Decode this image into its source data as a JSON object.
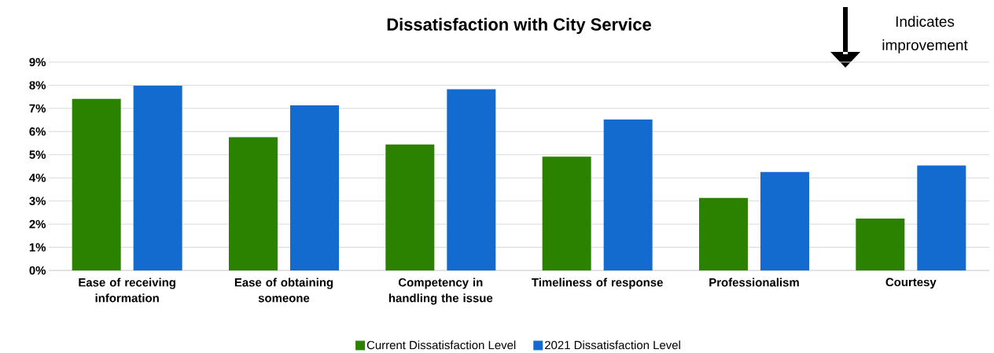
{
  "chart_data": {
    "type": "bar",
    "title": "Dissatisfaction with City Service",
    "categories": [
      "Ease of receiving information",
      "Ease of obtaining someone",
      "Competency in handling the issue",
      "Timeliness of response",
      "Professionalism",
      "Courtesy"
    ],
    "series": [
      {
        "name": "Current Dissatisfaction Level",
        "color": "#2a8200",
        "values": [
          7.41,
          5.76,
          5.44,
          4.92,
          3.13,
          2.24
        ]
      },
      {
        "name": "2021 Dissatisfaction Level",
        "color": "#146bcf",
        "values": [
          7.98,
          7.13,
          7.83,
          6.52,
          4.25,
          4.53
        ]
      }
    ],
    "ylim": [
      0,
      9
    ],
    "yticks": [
      {
        "value": 0,
        "label": "0%"
      },
      {
        "value": 1,
        "label": "1%"
      },
      {
        "value": 2,
        "label": "2%"
      },
      {
        "value": 3,
        "label": "3%"
      },
      {
        "value": 4,
        "label": "4%"
      },
      {
        "value": 5,
        "label": "5%"
      },
      {
        "value": 6,
        "label": "6%"
      },
      {
        "value": 7,
        "label": "7%"
      },
      {
        "value": 8,
        "label": "8%"
      },
      {
        "value": 9,
        "label": "9%"
      }
    ],
    "grid": "y",
    "legend": "bottom",
    "annotations": [
      "Indicates improvement"
    ]
  }
}
